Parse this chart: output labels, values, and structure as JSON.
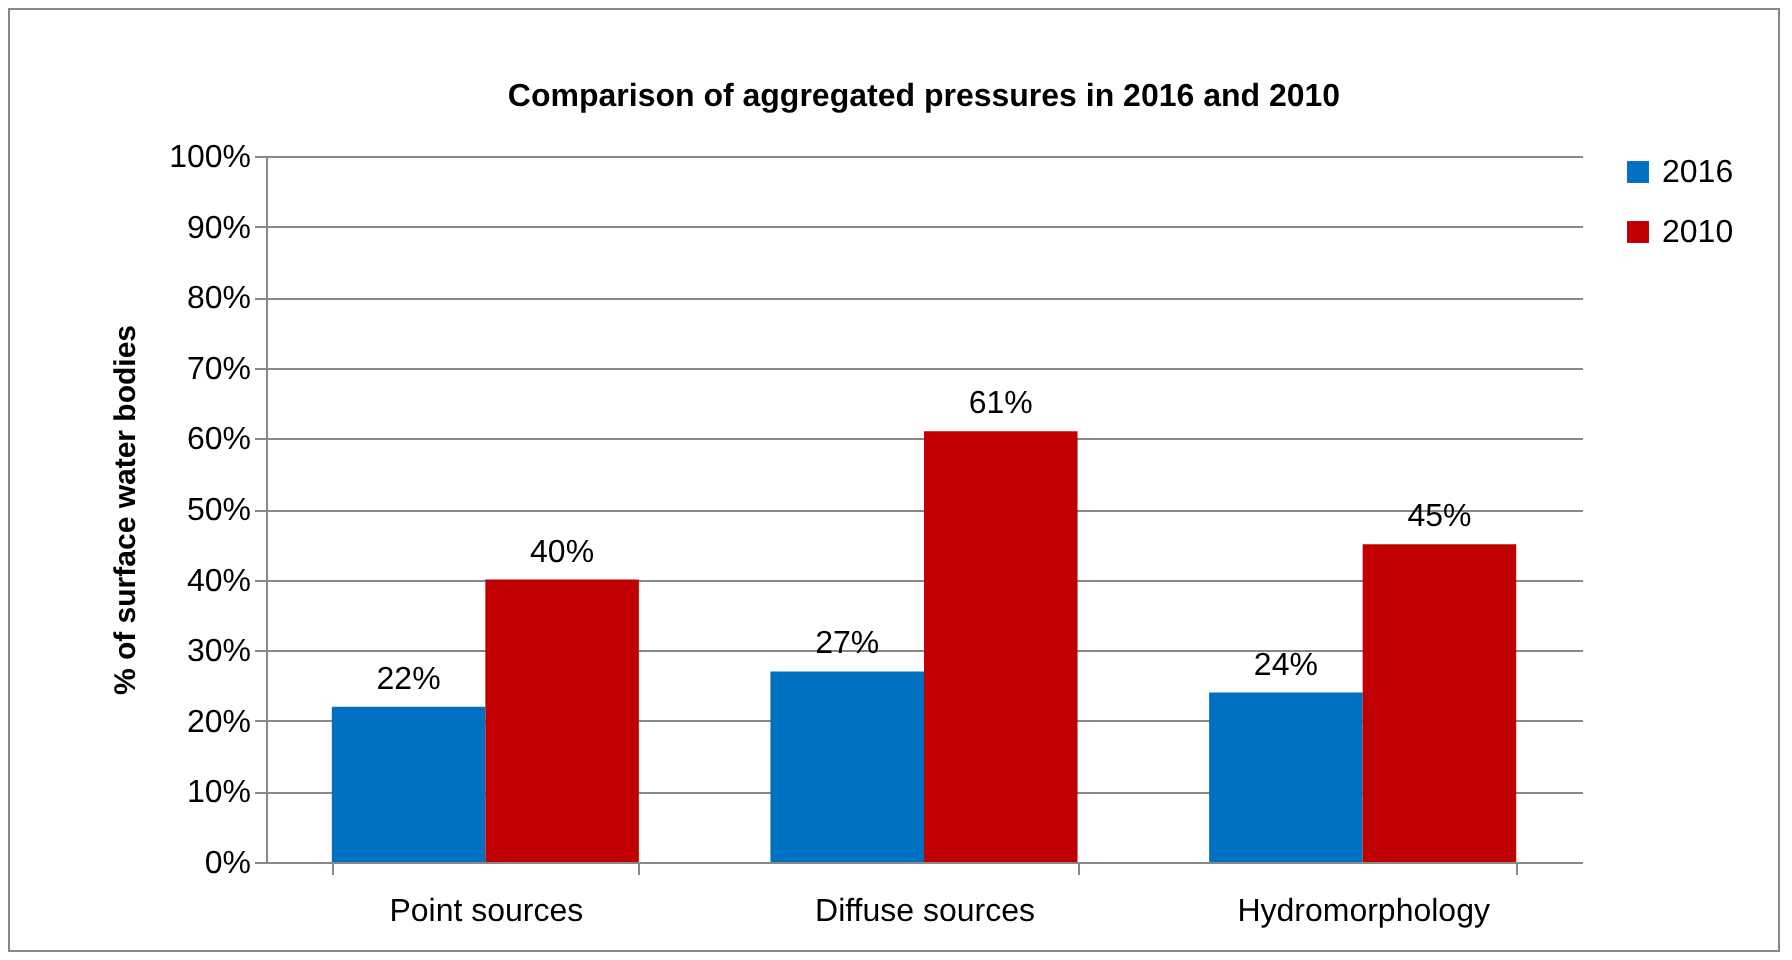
{
  "chart_data": {
    "type": "bar",
    "title": "Comparison of aggregated pressures in 2016 and 2010",
    "ylabel": "% of surface water bodies",
    "categories": [
      "Point sources",
      "Diffuse sources",
      "Hydromorphology"
    ],
    "series": [
      {
        "name": "2016",
        "color": "#0070c0",
        "values": [
          22,
          27,
          24
        ],
        "value_labels": [
          "22%",
          "27%",
          "24%"
        ]
      },
      {
        "name": "2010",
        "color": "#c00000",
        "values": [
          40,
          61,
          45
        ],
        "value_labels": [
          "40%",
          "61%",
          "45%"
        ]
      }
    ],
    "ylim": [
      0,
      100
    ],
    "yticks": [
      {
        "value": 0,
        "label": "0%"
      },
      {
        "value": 10,
        "label": "10%"
      },
      {
        "value": 20,
        "label": "20%"
      },
      {
        "value": 30,
        "label": "30%"
      },
      {
        "value": 40,
        "label": "40%"
      },
      {
        "value": 50,
        "label": "50%"
      },
      {
        "value": 60,
        "label": "60%"
      },
      {
        "value": 70,
        "label": "70%"
      },
      {
        "value": 80,
        "label": "80%"
      },
      {
        "value": 90,
        "label": "90%"
      },
      {
        "value": 100,
        "label": "100%"
      }
    ],
    "grid": "y",
    "legend": "right"
  }
}
